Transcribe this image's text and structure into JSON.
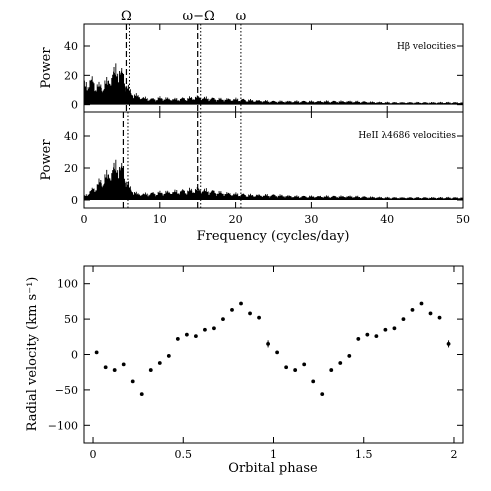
{
  "chart_data": [
    {
      "type": "line",
      "panel": "top-periodogram",
      "annotation": "Hβ velocities",
      "ylabel": "Power",
      "xlim": [
        0,
        50
      ],
      "ylim": [
        -5,
        55
      ],
      "yticks": [
        "0",
        "20",
        "40"
      ],
      "ytick_values": [
        0,
        20,
        40
      ],
      "xticks_values": [
        0,
        10,
        20,
        30,
        40,
        50
      ],
      "markers": [
        {
          "label": "Ω",
          "x": 5.6,
          "style": "dashed"
        },
        {
          "label": "",
          "x": 6.0,
          "style": "dotted"
        },
        {
          "label": "ω−Ω",
          "x": 15.0,
          "style": "dashed"
        },
        {
          "label": "",
          "x": 15.4,
          "style": "dotted"
        },
        {
          "label": "ω",
          "x": 20.7,
          "style": "dotted"
        }
      ],
      "envelope": {
        "x": [
          0,
          1,
          2,
          3,
          4,
          4.5,
          5,
          5.5,
          6,
          7,
          8,
          9,
          10,
          12,
          14,
          15,
          16,
          18,
          20,
          22,
          25,
          28,
          30,
          35,
          40,
          45,
          50
        ],
        "y": [
          18,
          22,
          16,
          20,
          30,
          34,
          28,
          22,
          12,
          8,
          6,
          5,
          6,
          5,
          6,
          7,
          6,
          5,
          5,
          4,
          3,
          3,
          3,
          3,
          2,
          2,
          2
        ]
      }
    },
    {
      "type": "line",
      "panel": "middle-periodogram",
      "annotation": "HeII λ4686 velocities",
      "ylabel": "Power",
      "xlabel": "Frequency (cycles/day)",
      "xlim": [
        0,
        50
      ],
      "ylim": [
        -5,
        55
      ],
      "yticks": [
        "0",
        "20",
        "40"
      ],
      "ytick_values": [
        0,
        20,
        40
      ],
      "xticks": [
        "0",
        "10",
        "20",
        "30",
        "40",
        "50"
      ],
      "xticks_values": [
        0,
        10,
        20,
        30,
        40,
        50
      ],
      "markers": [
        {
          "label": "",
          "x": 5.2,
          "style": "dashed"
        },
        {
          "label": "",
          "x": 5.8,
          "style": "dotted"
        },
        {
          "label": "",
          "x": 15.0,
          "style": "dashed"
        },
        {
          "label": "",
          "x": 15.4,
          "style": "dotted"
        },
        {
          "label": "",
          "x": 20.7,
          "style": "dotted"
        }
      ],
      "envelope": {
        "x": [
          0,
          1,
          2,
          3,
          4,
          4.5,
          5,
          5.5,
          6,
          7,
          8,
          10,
          12,
          14,
          15,
          16,
          18,
          20,
          22,
          25,
          28,
          30,
          35,
          40,
          45,
          50
        ],
        "y": [
          3,
          8,
          14,
          20,
          27,
          30,
          26,
          20,
          10,
          5,
          5,
          6,
          7,
          8,
          9,
          8,
          6,
          5,
          4,
          4,
          3,
          3,
          3,
          2,
          2,
          2
        ]
      }
    },
    {
      "type": "scatter",
      "panel": "bottom-radial-velocity",
      "xlabel": "Orbital phase",
      "ylabel": "Radial velocity (km s⁻¹)",
      "xlim": [
        -0.05,
        2.05
      ],
      "ylim": [
        -125,
        125
      ],
      "xticks": [
        "0",
        "0.5",
        "1",
        "1.5",
        "2"
      ],
      "xticks_values": [
        0,
        0.5,
        1,
        1.5,
        2
      ],
      "yticks": [
        "−100",
        "−50",
        "0",
        "50",
        "100"
      ],
      "ytick_values": [
        -100,
        -50,
        0,
        50,
        100
      ],
      "points": {
        "x": [
          0.02,
          0.07,
          0.12,
          0.17,
          0.22,
          0.27,
          0.32,
          0.37,
          0.42,
          0.47,
          0.52,
          0.57,
          0.62,
          0.67,
          0.72,
          0.77,
          0.82,
          0.87,
          0.92,
          0.97,
          1.02,
          1.07,
          1.12,
          1.17,
          1.22,
          1.27,
          1.32,
          1.37,
          1.42,
          1.47,
          1.52,
          1.57,
          1.62,
          1.67,
          1.72,
          1.77,
          1.82,
          1.87,
          1.92,
          1.97
        ],
        "y": [
          3,
          -18,
          -22,
          -14,
          -38,
          -56,
          -22,
          -12,
          -2,
          22,
          28,
          26,
          35,
          37,
          50,
          63,
          72,
          58,
          52,
          15,
          3,
          -18,
          -22,
          -14,
          -38,
          -56,
          -22,
          -12,
          -2,
          22,
          28,
          26,
          35,
          37,
          50,
          63,
          72,
          58,
          52,
          15
        ],
        "err": [
          2,
          2,
          2,
          2,
          2,
          2,
          2,
          2,
          2,
          2,
          2,
          2,
          2,
          2,
          2,
          2,
          2,
          2,
          2,
          5,
          2,
          2,
          2,
          2,
          2,
          2,
          2,
          2,
          2,
          2,
          2,
          2,
          2,
          2,
          2,
          2,
          2,
          2,
          2,
          5
        ]
      }
    }
  ]
}
